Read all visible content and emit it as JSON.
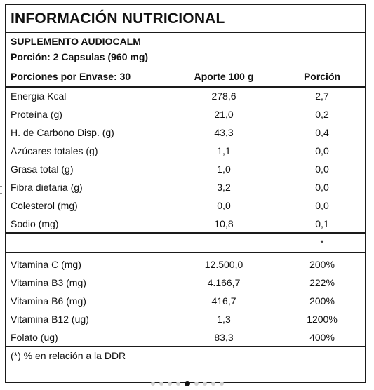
{
  "title": "INFORMACIÓN NUTRICIONAL",
  "product": "SUPLEMENTO AUDIOCALM",
  "serving": "Porción:  2 Capsulas (960 mg)",
  "header": {
    "servings_per_container": "Porciones por Envase: 30",
    "col_aporte": "Aporte 100 g",
    "col_porcion": "Porción"
  },
  "nutrients": [
    {
      "name": "Energia Kcal",
      "aporte": "278,6",
      "porcion": "2,7"
    },
    {
      "name": "Proteína (g)",
      "aporte": "21,0",
      "porcion": "0,2"
    },
    {
      "name": "H. de Carbono Disp. (g)",
      "aporte": "43,3",
      "porcion": "0,4"
    },
    {
      "name": "Azúcares totales (g)",
      "aporte": "1,1",
      "porcion": "0,0"
    },
    {
      "name": "Grasa total (g)",
      "aporte": "1,0",
      "porcion": "0,0"
    },
    {
      "name": "Fibra dietaria (g)",
      "aporte": "3,2",
      "porcion": "0,0"
    },
    {
      "name": "Colesterol (mg)",
      "aporte": "0,0",
      "porcion": "0,0"
    },
    {
      "name": "Sodio (mg)",
      "aporte": "10,8",
      "porcion": "0,1"
    }
  ],
  "asterisk": "*",
  "vitamins": [
    {
      "name": "Vitamina C (mg)",
      "aporte": "12.500,0",
      "porcion": "200%"
    },
    {
      "name": "Vitamina B3 (mg)",
      "aporte": "4.166,7",
      "porcion": "222%"
    },
    {
      "name": "Vitamina B6 (mg)",
      "aporte": "416,7",
      "porcion": "200%"
    },
    {
      "name": "Vitamina B12 (ug)",
      "aporte": "1,3",
      "porcion": "1200%"
    },
    {
      "name": "Folato (ug)",
      "aporte": "83,3",
      "porcion": "400%"
    }
  ],
  "footnote": "(*) % en relación a la DDR",
  "carousel": {
    "total": 9,
    "active_index": 4
  }
}
